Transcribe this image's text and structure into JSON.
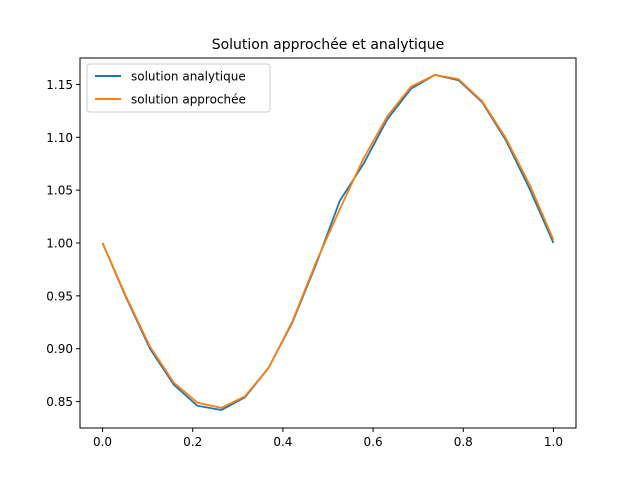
{
  "chart_data": {
    "type": "line",
    "title": "Solution approchée et analytique",
    "xlabel": "",
    "ylabel": "",
    "xlim": [
      -0.05,
      1.05
    ],
    "ylim": [
      0.825,
      1.175
    ],
    "xticks": [
      "0.0",
      "0.2",
      "0.4",
      "0.6",
      "0.8",
      "1.0"
    ],
    "yticks": [
      "0.85",
      "0.90",
      "0.95",
      "1.00",
      "1.05",
      "1.10",
      "1.15"
    ],
    "grid": false,
    "legend_position": "upper-left",
    "series": [
      {
        "name": "solution analytique",
        "color": "#1f77b4",
        "x": [
          0.0,
          0.0526,
          0.1053,
          0.1579,
          0.2105,
          0.2632,
          0.3158,
          0.3684,
          0.4211,
          0.4737,
          0.5263,
          0.5789,
          0.6316,
          0.6842,
          0.7368,
          0.7895,
          0.8421,
          0.8947,
          0.9474,
          1.0
        ],
        "values": [
          1.0,
          0.948,
          0.9,
          0.866,
          0.846,
          0.842,
          0.854,
          0.882,
          0.925,
          0.98,
          1.04,
          1.075,
          1.117,
          1.146,
          1.159,
          1.154,
          1.133,
          1.097,
          1.051,
          1.0
        ]
      },
      {
        "name": "solution approchée",
        "color": "#ff7f0e",
        "x": [
          0.0,
          0.0526,
          0.1053,
          0.1579,
          0.2105,
          0.2632,
          0.3158,
          0.3684,
          0.4211,
          0.4737,
          0.5263,
          0.5789,
          0.6316,
          0.6842,
          0.7368,
          0.7895,
          0.8421,
          0.8947,
          0.9474,
          1.0
        ],
        "values": [
          1.0,
          0.949,
          0.902,
          0.868,
          0.849,
          0.844,
          0.855,
          0.882,
          0.926,
          0.982,
          1.032,
          1.08,
          1.12,
          1.148,
          1.159,
          1.155,
          1.134,
          1.099,
          1.055,
          1.003
        ]
      }
    ]
  }
}
